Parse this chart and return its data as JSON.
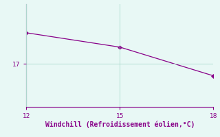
{
  "x": [
    12,
    15,
    18
  ],
  "y": [
    18.3,
    17.7,
    16.5
  ],
  "line_color": "#880088",
  "marker": "D",
  "marker_size": 3,
  "background_color": "#e8f8f5",
  "grid_color": "#b0ddd0",
  "axis_color": "#880088",
  "tick_color": "#880088",
  "xlabel": "Windchill (Refroidissement éolien,°C)",
  "xlabel_fontsize": 7,
  "xticks": [
    12,
    15,
    18
  ],
  "yticks": [
    17
  ],
  "xlim": [
    12,
    18
  ],
  "ylim": [
    15.2,
    19.5
  ]
}
